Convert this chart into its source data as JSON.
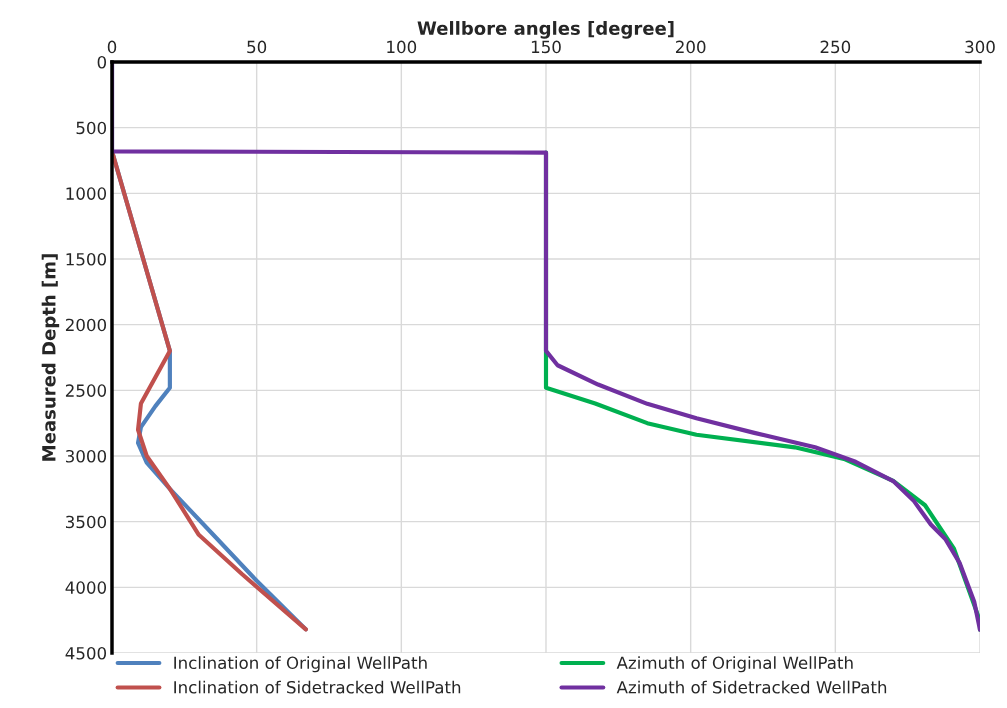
{
  "chart_data": {
    "type": "line",
    "xlabel": "Wellbore angles [degree]",
    "ylabel": "Measured Depth [m]",
    "xlim": [
      0,
      300
    ],
    "xticks": [
      0,
      50,
      100,
      150,
      200,
      250,
      300
    ],
    "ylim": [
      4500,
      0
    ],
    "yticks": [
      0,
      500,
      1000,
      1500,
      2000,
      2500,
      3000,
      3500,
      4000,
      4500
    ],
    "grid": true,
    "legend": "bottom",
    "marker": "none",
    "line_style": "solid",
    "series": [
      {
        "name": "Inclination of Original WellPath",
        "color": "#4f81bd",
        "x": [
          0,
          0,
          20,
          20,
          15,
          10,
          9,
          12,
          20,
          35,
          50,
          67
        ],
        "values": [
          0,
          680,
          2200,
          2480,
          2620,
          2780,
          2900,
          3050,
          3250,
          3600,
          3950,
          4320
        ]
      },
      {
        "name": "Inclination of Sidetracked WellPath",
        "color": "#c0504d",
        "x": [
          0,
          20,
          15,
          10,
          9,
          12,
          20,
          30,
          45,
          67
        ],
        "values": [
          680,
          2200,
          2400,
          2600,
          2800,
          3000,
          3250,
          3600,
          3900,
          4320
        ]
      },
      {
        "name": "Azimuth of Original WellPath",
        "color": "#00b050",
        "x": [
          150,
          150,
          167,
          185,
          202,
          236,
          253,
          270,
          281,
          291,
          300,
          300
        ],
        "values": [
          690,
          2480,
          2600,
          2750,
          2838,
          2934,
          3022,
          3190,
          3375,
          3706,
          4257,
          4323
        ]
      },
      {
        "name": "Azimuth of Sidetracked WellPath",
        "color": "#7030a0",
        "x": [
          0,
          0,
          150,
          150,
          154,
          168,
          185,
          202,
          222,
          243,
          257,
          270,
          277,
          283,
          288,
          293,
          298,
          300
        ],
        "values": [
          0,
          680,
          690,
          2200,
          2309,
          2456,
          2603,
          2713,
          2824,
          2934,
          3044,
          3191,
          3338,
          3522,
          3632,
          3816,
          4110,
          4323
        ]
      }
    ]
  }
}
